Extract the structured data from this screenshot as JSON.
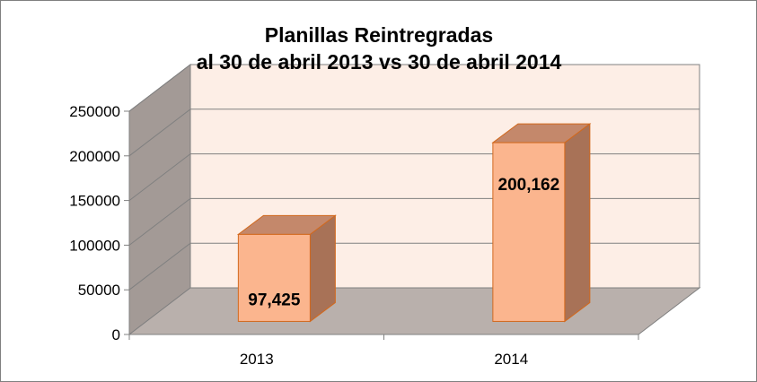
{
  "chart_data": {
    "type": "bar",
    "title_lines": [
      "Planillas Reintregradas",
      "al 30 de abril 2013 vs 30 de abril 2014"
    ],
    "categories": [
      "2013",
      "2014"
    ],
    "values": [
      97425,
      200162
    ],
    "data_labels": [
      "97,425",
      "200,162"
    ],
    "y_ticks": [
      "0",
      "50000",
      "100000",
      "150000",
      "200000",
      "250000"
    ],
    "ylim": [
      0,
      250000
    ],
    "y_step": 50000,
    "grid": true,
    "legend": "none",
    "three_d": true,
    "colors": {
      "bar_front": "#FBB58E",
      "bar_top": "#C4886B",
      "bar_side": "#A87257",
      "bar_edge": "#D2691E",
      "back_wall": "#FDEEE6",
      "side_wall": "#A39A96",
      "floor": "#B9B0AC",
      "grid": "#808080"
    }
  }
}
